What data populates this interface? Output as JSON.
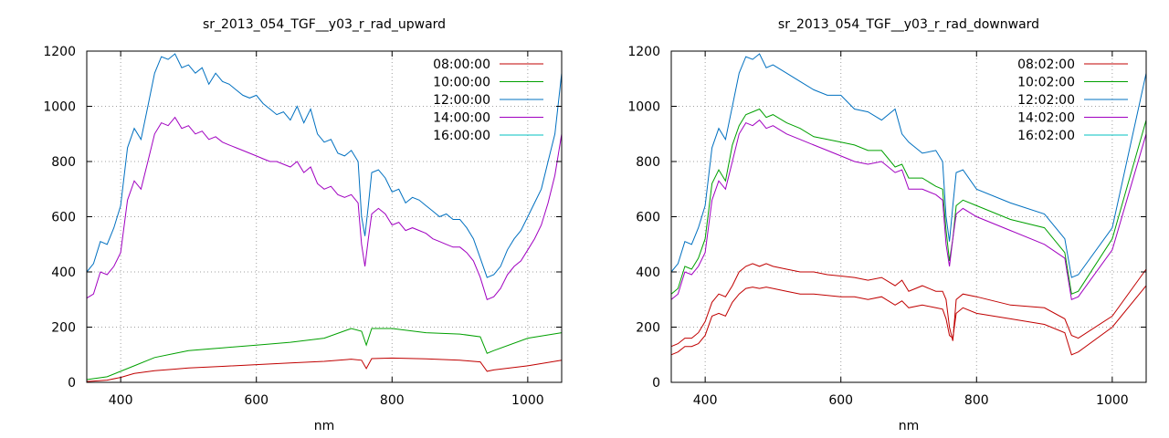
{
  "chart_data": [
    {
      "type": "line",
      "title": "sr_2013_054_TGF__y03_r_rad_upward",
      "xlabel": "nm",
      "ylabel": "",
      "xlim": [
        350,
        1050
      ],
      "ylim": [
        0,
        1200
      ],
      "xticks": [
        400,
        600,
        800,
        1000
      ],
      "yticks": [
        0,
        200,
        400,
        600,
        800,
        1000,
        1200
      ],
      "grid": true,
      "legend_position": "top-right",
      "series": [
        {
          "name": "08:00:00",
          "color": "#c00000",
          "x": [
            350,
            380,
            400,
            420,
            450,
            480,
            500,
            550,
            600,
            650,
            700,
            740,
            755,
            762,
            770,
            800,
            850,
            900,
            930,
            940,
            950,
            1000,
            1050
          ],
          "y": [
            3,
            8,
            18,
            32,
            42,
            48,
            52,
            58,
            64,
            70,
            76,
            84,
            80,
            50,
            86,
            88,
            85,
            80,
            74,
            40,
            45,
            60,
            80
          ]
        },
        {
          "name": "10:00:00",
          "color": "#00a000",
          "x": [
            350,
            380,
            400,
            420,
            450,
            480,
            500,
            550,
            600,
            650,
            700,
            740,
            755,
            762,
            770,
            800,
            850,
            900,
            930,
            940,
            950,
            1000,
            1050
          ],
          "y": [
            10,
            20,
            40,
            60,
            90,
            105,
            115,
            125,
            135,
            145,
            160,
            195,
            185,
            135,
            195,
            195,
            180,
            175,
            165,
            105,
            115,
            160,
            180
          ]
        },
        {
          "name": "12:00:00",
          "color": "#0070c0",
          "x": [
            350,
            360,
            370,
            380,
            390,
            400,
            410,
            420,
            430,
            440,
            450,
            460,
            470,
            480,
            490,
            500,
            510,
            520,
            530,
            540,
            550,
            560,
            570,
            580,
            590,
            600,
            610,
            620,
            630,
            640,
            650,
            660,
            670,
            680,
            690,
            700,
            710,
            720,
            730,
            740,
            750,
            755,
            760,
            765,
            770,
            780,
            790,
            800,
            810,
            820,
            830,
            840,
            850,
            860,
            870,
            880,
            890,
            900,
            910,
            920,
            930,
            940,
            950,
            960,
            970,
            980,
            990,
            1000,
            1010,
            1020,
            1030,
            1040,
            1050
          ],
          "y": [
            400,
            430,
            510,
            500,
            560,
            640,
            850,
            920,
            880,
            1000,
            1120,
            1180,
            1170,
            1190,
            1140,
            1150,
            1120,
            1140,
            1080,
            1120,
            1090,
            1080,
            1060,
            1040,
            1030,
            1040,
            1010,
            990,
            970,
            980,
            950,
            1000,
            940,
            990,
            900,
            870,
            880,
            830,
            820,
            840,
            800,
            600,
            530,
            640,
            760,
            770,
            740,
            690,
            700,
            650,
            670,
            660,
            640,
            620,
            600,
            610,
            590,
            590,
            560,
            520,
            450,
            380,
            390,
            420,
            480,
            520,
            550,
            600,
            650,
            700,
            800,
            900,
            1120
          ]
        },
        {
          "name": "14:00:00",
          "color": "#a000c0",
          "x": [
            350,
            360,
            370,
            380,
            390,
            400,
            410,
            420,
            430,
            440,
            450,
            460,
            470,
            480,
            490,
            500,
            510,
            520,
            530,
            540,
            550,
            560,
            570,
            580,
            590,
            600,
            610,
            620,
            630,
            640,
            650,
            660,
            670,
            680,
            690,
            700,
            710,
            720,
            730,
            740,
            750,
            755,
            760,
            765,
            770,
            780,
            790,
            800,
            810,
            820,
            830,
            840,
            850,
            860,
            870,
            880,
            890,
            900,
            910,
            920,
            930,
            940,
            950,
            960,
            970,
            980,
            990,
            1000,
            1010,
            1020,
            1030,
            1040,
            1050
          ],
          "y": [
            305,
            320,
            400,
            390,
            420,
            470,
            660,
            730,
            700,
            800,
            900,
            940,
            930,
            960,
            920,
            930,
            900,
            910,
            880,
            890,
            870,
            860,
            850,
            840,
            830,
            820,
            810,
            800,
            800,
            790,
            780,
            800,
            760,
            780,
            720,
            700,
            710,
            680,
            670,
            680,
            650,
            500,
            420,
            520,
            610,
            630,
            610,
            570,
            580,
            550,
            560,
            550,
            540,
            520,
            510,
            500,
            490,
            490,
            470,
            440,
            380,
            300,
            310,
            340,
            390,
            420,
            440,
            480,
            520,
            570,
            650,
            750,
            900
          ]
        },
        {
          "name": "16:00:00",
          "color": "#00c0c0",
          "x": [],
          "y": []
        }
      ]
    },
    {
      "type": "line",
      "title": "sr_2013_054_TGF__y03_r_rad_downward",
      "xlabel": "nm",
      "ylabel": "",
      "xlim": [
        350,
        1050
      ],
      "ylim": [
        0,
        1200
      ],
      "xticks": [
        400,
        600,
        800,
        1000
      ],
      "yticks": [
        0,
        200,
        400,
        600,
        800,
        1000,
        1200
      ],
      "grid": true,
      "legend_position": "top-right",
      "series": [
        {
          "name": "08:02:00",
          "color": "#c00000",
          "x": [
            350,
            360,
            370,
            380,
            390,
            400,
            410,
            420,
            430,
            440,
            450,
            460,
            470,
            480,
            490,
            500,
            520,
            540,
            560,
            580,
            600,
            620,
            640,
            660,
            680,
            690,
            700,
            720,
            740,
            750,
            755,
            760,
            765,
            770,
            780,
            800,
            850,
            900,
            930,
            940,
            950,
            1000,
            1050
          ],
          "y": [
            130,
            140,
            160,
            160,
            180,
            220,
            290,
            320,
            310,
            350,
            400,
            420,
            430,
            420,
            430,
            420,
            410,
            400,
            400,
            390,
            385,
            380,
            370,
            380,
            350,
            370,
            330,
            350,
            330,
            330,
            300,
            200,
            150,
            300,
            320,
            310,
            280,
            270,
            230,
            170,
            160,
            240,
            410
          ]
        },
        {
          "name": "10:02:00",
          "color": "#00a000",
          "x": [
            350,
            360,
            370,
            380,
            390,
            400,
            410,
            420,
            430,
            440,
            450,
            460,
            470,
            480,
            490,
            500,
            520,
            540,
            560,
            580,
            600,
            620,
            640,
            660,
            680,
            690,
            700,
            720,
            740,
            750,
            755,
            760,
            765,
            770,
            780,
            800,
            850,
            900,
            930,
            940,
            950,
            1000,
            1050
          ],
          "y": [
            320,
            340,
            420,
            410,
            450,
            520,
            720,
            770,
            730,
            860,
            930,
            970,
            980,
            990,
            960,
            970,
            940,
            920,
            890,
            880,
            870,
            860,
            840,
            840,
            780,
            790,
            740,
            740,
            710,
            700,
            550,
            440,
            520,
            640,
            660,
            640,
            590,
            560,
            470,
            320,
            330,
            520,
            950
          ]
        },
        {
          "name": "12:02:00",
          "color": "#0070c0",
          "x": [
            350,
            360,
            370,
            380,
            390,
            400,
            410,
            420,
            430,
            440,
            450,
            460,
            470,
            480,
            490,
            500,
            520,
            540,
            560,
            580,
            600,
            620,
            640,
            660,
            680,
            690,
            700,
            720,
            740,
            750,
            755,
            760,
            765,
            770,
            780,
            800,
            850,
            900,
            930,
            940,
            950,
            1000,
            1050
          ],
          "y": [
            400,
            430,
            510,
            500,
            560,
            640,
            850,
            920,
            880,
            1000,
            1120,
            1180,
            1170,
            1190,
            1140,
            1150,
            1120,
            1090,
            1060,
            1040,
            1040,
            990,
            980,
            950,
            990,
            900,
            870,
            830,
            840,
            800,
            600,
            510,
            640,
            760,
            770,
            700,
            650,
            610,
            520,
            380,
            390,
            560,
            1120
          ]
        },
        {
          "name": "14:02:00",
          "color": "#a000c0",
          "x": [
            350,
            360,
            370,
            380,
            390,
            400,
            410,
            420,
            430,
            440,
            450,
            460,
            470,
            480,
            490,
            500,
            520,
            540,
            560,
            580,
            600,
            620,
            640,
            660,
            680,
            690,
            700,
            720,
            740,
            750,
            755,
            760,
            765,
            770,
            780,
            800,
            850,
            900,
            930,
            940,
            950,
            1000,
            1050
          ],
          "y": [
            300,
            320,
            400,
            390,
            420,
            470,
            660,
            730,
            700,
            800,
            900,
            940,
            930,
            950,
            920,
            930,
            900,
            880,
            860,
            840,
            820,
            800,
            790,
            800,
            760,
            770,
            700,
            700,
            680,
            660,
            500,
            420,
            520,
            610,
            630,
            600,
            550,
            500,
            450,
            300,
            310,
            480,
            900
          ]
        },
        {
          "name": "16:02:00",
          "color": "#00c0c0",
          "x": [],
          "y": []
        },
        {
          "name": "",
          "color": "#c00000",
          "x": [
            350,
            360,
            370,
            380,
            390,
            400,
            410,
            420,
            430,
            440,
            450,
            460,
            470,
            480,
            490,
            500,
            520,
            540,
            560,
            580,
            600,
            620,
            640,
            660,
            680,
            690,
            700,
            720,
            740,
            750,
            755,
            760,
            765,
            770,
            780,
            800,
            850,
            900,
            930,
            940,
            950,
            1000,
            1050
          ],
          "y": [
            100,
            110,
            130,
            130,
            140,
            170,
            240,
            250,
            240,
            290,
            320,
            340,
            345,
            340,
            345,
            340,
            330,
            320,
            320,
            315,
            310,
            310,
            300,
            310,
            280,
            295,
            270,
            280,
            270,
            265,
            230,
            170,
            160,
            250,
            270,
            250,
            230,
            210,
            180,
            100,
            110,
            200,
            350
          ]
        }
      ]
    }
  ]
}
